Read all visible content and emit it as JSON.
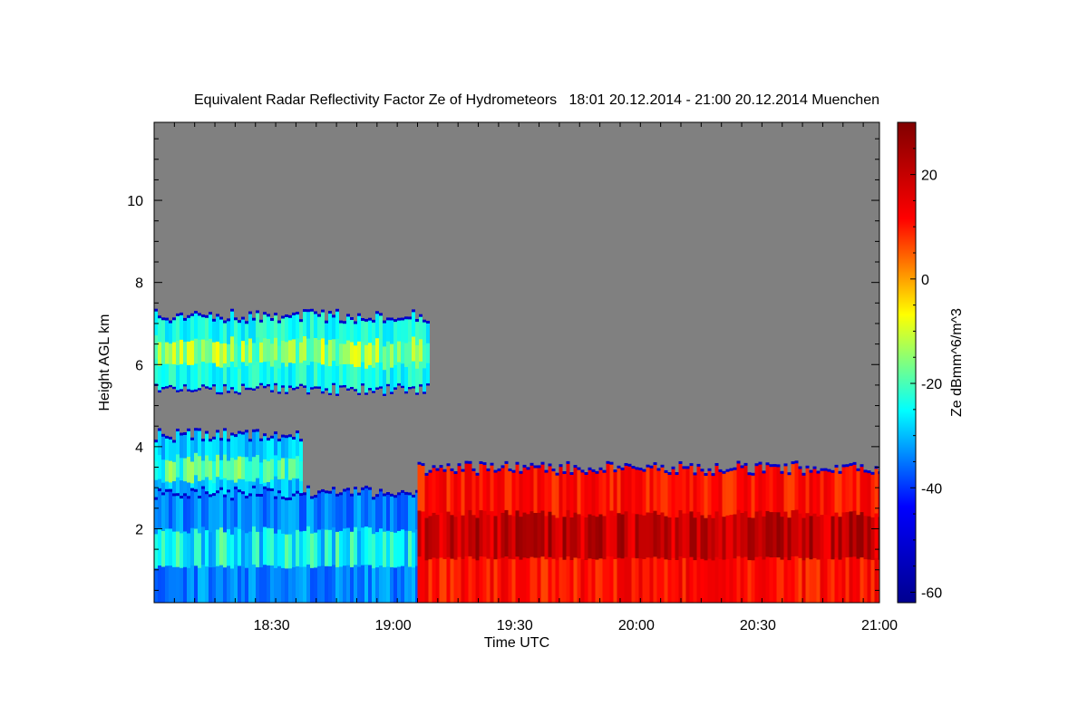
{
  "chart_data": {
    "type": "heatmap",
    "title": "Equivalent Radar Reflectivity Factor Ze of Hydrometeors   18:01 20.12.2014 - 21:00 20.12.2014 Muenchen",
    "xlabel": "Time UTC",
    "ylabel": "Height AGL km",
    "colorbar_label": "Ze dBmm^6/m^3",
    "x_range_minutes_utc": [
      1081,
      1260
    ],
    "y_range_km": [
      0.2,
      11.9
    ],
    "x_ticks": [
      {
        "value": 1110,
        "label": "18:30"
      },
      {
        "value": 1140,
        "label": "19:00"
      },
      {
        "value": 1170,
        "label": "19:30"
      },
      {
        "value": 1200,
        "label": "20:00"
      },
      {
        "value": 1230,
        "label": "20:30"
      },
      {
        "value": 1260,
        "label": "21:00"
      }
    ],
    "y_ticks": [
      {
        "value": 2,
        "label": "2"
      },
      {
        "value": 4,
        "label": "4"
      },
      {
        "value": 6,
        "label": "6"
      },
      {
        "value": 8,
        "label": "8"
      },
      {
        "value": 10,
        "label": "10"
      }
    ],
    "colorbar_range": [
      -62,
      30
    ],
    "colorbar_ticks": [
      {
        "value": -60,
        "label": "-60"
      },
      {
        "value": -40,
        "label": "-40"
      },
      {
        "value": -20,
        "label": "-20"
      },
      {
        "value": 0,
        "label": "0"
      },
      {
        "value": 20,
        "label": "20"
      }
    ],
    "colormap": [
      "#00008f",
      "#0000ff",
      "#00ffff",
      "#ffff00",
      "#ff0000",
      "#800000"
    ],
    "no_signal_color": "#808080",
    "regions": [
      {
        "name": "upper cloud layer",
        "t_start": 1081,
        "t_end": 1149,
        "base_km": 5.3,
        "top_km": 7.2,
        "ze_typical": -20
      },
      {
        "name": "mid cloud layer",
        "t_start": 1081,
        "t_end": 1117,
        "base_km": 2.5,
        "top_km": 4.3,
        "ze_typical": -25
      },
      {
        "name": "low precipitation (weak)",
        "t_start": 1081,
        "t_end": 1146,
        "base_km": 0.2,
        "top_km": 2.9,
        "ze_typical": -30
      },
      {
        "name": "precipitation (strong)",
        "t_start": 1146,
        "t_end": 1260,
        "base_km": 0.2,
        "top_km": 3.5,
        "ze_typical": 15
      }
    ]
  }
}
